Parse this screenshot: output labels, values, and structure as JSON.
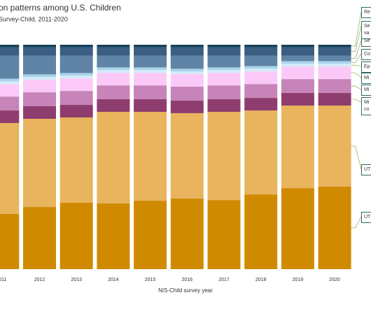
{
  "chart_data": {
    "type": "stacked_bar",
    "title": "on patterns among U.S. Children",
    "subtitle": "Survey-Child, 2011-2020",
    "x_label": "NIS-Child survey year",
    "categories": [
      "011",
      "2012",
      "2013",
      "2014",
      "2015",
      "2016",
      "2017",
      "2018",
      "2019",
      "2020"
    ],
    "ylim": [
      0,
      100
    ],
    "series": [
      {
        "name": "UT",
        "color": "#d08a00",
        "values": [
          24.6,
          27.7,
          29.6,
          29.3,
          30.5,
          31.5,
          30.8,
          33.3,
          36.1,
          36.8
        ]
      },
      {
        "name": "UT",
        "color": "#e9b45e",
        "values": [
          40.5,
          39.3,
          38.0,
          40.8,
          39.6,
          38.0,
          39.3,
          37.4,
          36.8,
          36.1
        ]
      },
      {
        "name": "Mi co",
        "color": "#8e3d6e",
        "values": [
          5.6,
          5.6,
          5.6,
          5.6,
          5.6,
          5.6,
          5.6,
          5.6,
          5.6,
          5.6
        ]
      },
      {
        "name": "Mi",
        "color": "#c784b8",
        "values": [
          6.2,
          6.2,
          6.2,
          6.2,
          6.2,
          6.2,
          6.2,
          6.2,
          6.2,
          6.2
        ]
      },
      {
        "name": "Mi",
        "color": "#fbc9f7",
        "values": [
          5.6,
          5.6,
          5.6,
          5.6,
          5.6,
          5.6,
          5.6,
          5.6,
          5.6,
          5.6
        ]
      },
      {
        "name": "Ep",
        "color": "#d3ecf8",
        "values": [
          1.2,
          1.2,
          1.2,
          1.2,
          1.2,
          1.2,
          1.2,
          1.2,
          1.2,
          1.2
        ]
      },
      {
        "name": "Co",
        "color": "#a9d3ea",
        "values": [
          1.2,
          1.2,
          1.2,
          1.2,
          1.2,
          1.2,
          1.2,
          1.2,
          1.2,
          1.2
        ]
      },
      {
        "name": "Se",
        "color": "#5f84a6",
        "values": [
          10.2,
          8.3,
          7.7,
          5.2,
          5.2,
          5.8,
          5.2,
          4.6,
          2.4,
          2.4
        ]
      },
      {
        "name": "Se va",
        "color": "#3a5f82",
        "values": [
          3.7,
          3.7,
          3.7,
          3.7,
          3.7,
          3.7,
          3.7,
          3.7,
          3.7,
          3.7
        ]
      },
      {
        "name": "Re",
        "color": "#17415f",
        "values": [
          1.2,
          1.2,
          1.2,
          1.2,
          1.2,
          1.2,
          1.2,
          1.2,
          1.2,
          1.2
        ]
      }
    ]
  }
}
